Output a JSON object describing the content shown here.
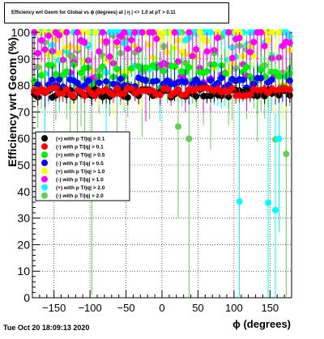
{
  "chart_data": {
    "type": "scatter",
    "title": "Efficiency wrt Geom for Global vs ϕ (degrees) at | η | <= 1.0 at pT > 0.11",
    "xlabel": "ϕ (degrees)",
    "ylabel": "Efficiency wrt Geom (%)",
    "xlim": [
      -180,
      180
    ],
    "ylim": [
      0,
      100
    ],
    "x_ticks": [
      "−150",
      "−100",
      "−50",
      "0",
      "50",
      "100",
      "150"
    ],
    "y_ticks": [
      "0",
      "10",
      "20",
      "30",
      "40",
      "50",
      "60",
      "70",
      "80",
      "90",
      "100"
    ],
    "grid": true,
    "legend_position": "left-middle",
    "series": [
      {
        "name": "(+) with p T/|q| > 0.1",
        "color": "#000000"
      },
      {
        "name": "(-) with p T/|q| > 0.1",
        "color": "#ff0000"
      },
      {
        "name": "(+) with p T/|q| > 0.5",
        "color": "#00ee00"
      },
      {
        "name": "(-) with p T/|q| > 0.5",
        "color": "#0000ff"
      },
      {
        "name": "(+) with p T/|q| > 1.0",
        "color": "#ffff00"
      },
      {
        "name": "(-) with p T/|q| > 1.0",
        "color": "#ff00ff"
      },
      {
        "name": "(+) with p T/|q| > 2.0",
        "color": "#00ffff"
      },
      {
        "name": "(-) with p T/|q| > 2.0",
        "color": "#66cc55"
      }
    ]
  },
  "timestamp": "Tue Oct 20 18:09:13 2020"
}
